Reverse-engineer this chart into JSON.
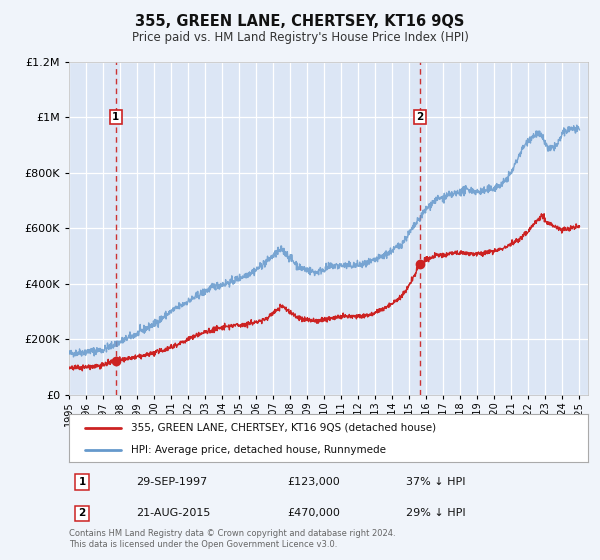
{
  "title": "355, GREEN LANE, CHERTSEY, KT16 9QS",
  "subtitle": "Price paid vs. HM Land Registry's House Price Index (HPI)",
  "bg_color": "#f0f4fa",
  "plot_bg_color": "#dce6f5",
  "grid_color": "#ffffff",
  "hpi_line_color": "#6699cc",
  "price_line_color": "#cc2222",
  "vline_color": "#cc3333",
  "ylim": [
    0,
    1200000
  ],
  "yticks": [
    0,
    200000,
    400000,
    600000,
    800000,
    1000000,
    1200000
  ],
  "xmin": 1995.0,
  "xmax": 2025.5,
  "sale1_x": 1997.75,
  "sale1_y": 123000,
  "sale1_label": "1",
  "sale1_date": "29-SEP-1997",
  "sale1_price": "£123,000",
  "sale1_hpi": "37% ↓ HPI",
  "sale2_x": 2015.63,
  "sale2_y": 470000,
  "sale2_label": "2",
  "sale2_date": "21-AUG-2015",
  "sale2_price": "£470,000",
  "sale2_hpi": "29% ↓ HPI",
  "legend_label1": "355, GREEN LANE, CHERTSEY, KT16 9QS (detached house)",
  "legend_label2": "HPI: Average price, detached house, Runnymede",
  "footnote": "Contains HM Land Registry data © Crown copyright and database right 2024.\nThis data is licensed under the Open Government Licence v3.0.",
  "xtick_years": [
    1995,
    1996,
    1997,
    1998,
    1999,
    2000,
    2001,
    2002,
    2003,
    2004,
    2005,
    2006,
    2007,
    2008,
    2009,
    2010,
    2011,
    2012,
    2013,
    2014,
    2015,
    2016,
    2017,
    2018,
    2019,
    2020,
    2021,
    2022,
    2023,
    2024,
    2025
  ]
}
